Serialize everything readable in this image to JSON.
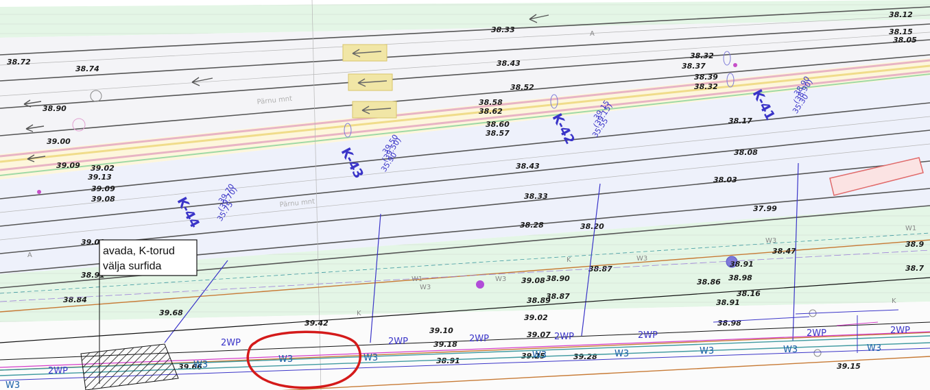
{
  "colors": {
    "background": "#ffffff",
    "green_zone": "#e4f6e6",
    "road_band": "#f3f3f6",
    "road_lines": "#4a4a4a",
    "curb_pink": "#f0c8d0",
    "curb_yellow": "#f4e7a8",
    "annotation_blue": "#3a34c8",
    "pipe_teal": "#3f9aa0",
    "pipe_magenta": "#d43bc8",
    "highlight_red": "#d41a1a",
    "cable_brown": "#c77a35"
  },
  "road_labels": [
    {
      "text": "Pärnu mnt",
      "id": "road-label-upper"
    },
    {
      "text": "Pärnu mnt",
      "id": "road-label-lower"
    }
  ],
  "lane_marker": "A",
  "area_letter": "A",
  "elevations": [
    "38.72",
    "38.74",
    "38.90",
    "39.00",
    "39.09",
    "39.02",
    "39.13",
    "39.09",
    "39.08",
    "39.00",
    "38.91",
    "38.84",
    "38.33",
    "38.43",
    "38.52",
    "38.58",
    "38.62",
    "38.60",
    "38.57",
    "38.43",
    "38.33",
    "38.28",
    "38.20",
    "38.32",
    "38.37",
    "38.39",
    "38.32",
    "38.17",
    "38.08",
    "38.03",
    "37.99",
    "38.47",
    "38.91",
    "38.87",
    "38.86",
    "38.16",
    "38.91",
    "38.98",
    "39.08",
    "38.90",
    "38.89",
    "38.87",
    "39.02",
    "39.07",
    "39.10",
    "39.18",
    "39.28",
    "39.25",
    "38.98",
    "39.42",
    "39.68",
    "39.66",
    "38.91",
    "39.15",
    "38.12",
    "38.15",
    "38.05",
    "38.9",
    "38.7"
  ],
  "manholes": [
    {
      "id": "K-44",
      "values": [
        "39.70",
        "(39.70)",
        "35.75"
      ]
    },
    {
      "id": "K-43",
      "values": [
        "39.50",
        "(39.50)",
        "35.90"
      ]
    },
    {
      "id": "K-42",
      "values": [
        "39.15",
        "(39.15)",
        "35.55"
      ]
    },
    {
      "id": "K-41",
      "values": [
        "38.90",
        "(38.90)",
        "35.30"
      ]
    }
  ],
  "note": {
    "line1": "avada, K-torud",
    "line2": "välja surfida"
  },
  "pipe_tags": [
    "2WP",
    "2WP",
    "2WP",
    "2WP",
    "2WP",
    "2WP",
    "2WP",
    "2WP"
  ],
  "pipe_labels": [
    "W3",
    "W3",
    "W3",
    "W3",
    "W3",
    "W3",
    "W3",
    "W3",
    "W3"
  ],
  "utility_tags": [
    "W3",
    "W3",
    "W3",
    "W3",
    "W1",
    "W1",
    "K",
    "K",
    "K"
  ],
  "highlight": {
    "shape": "ellipse",
    "color": "red"
  }
}
